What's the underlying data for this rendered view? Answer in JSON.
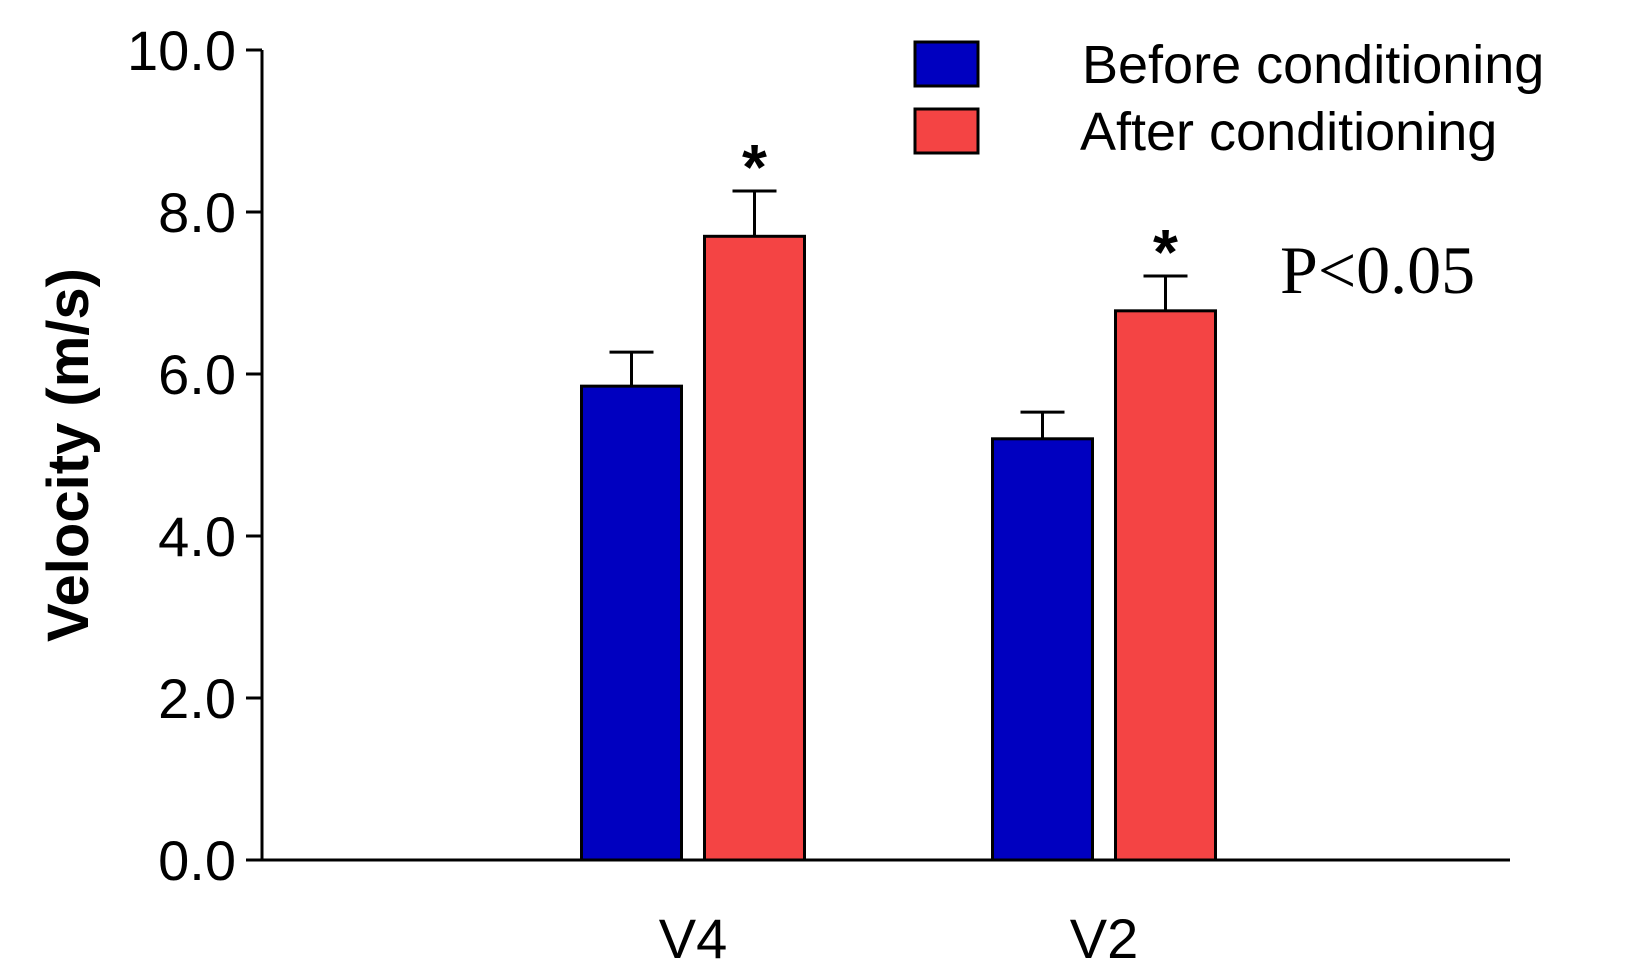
{
  "chart_data": {
    "type": "bar",
    "title": "",
    "xlabel": "",
    "ylabel": "Velocity (m/s)",
    "ylim": [
      0,
      10
    ],
    "yticks": [
      "0.0",
      "2.0",
      "4.0",
      "6.0",
      "8.0",
      "10.0"
    ],
    "categories": [
      "V4",
      "V2"
    ],
    "series": [
      {
        "name": "Before conditioning",
        "color": "#0000c0",
        "values": [
          5.85,
          5.2
        ],
        "errors": [
          0.42,
          0.33
        ],
        "significance": [
          "",
          ""
        ]
      },
      {
        "name": "After conditioning",
        "color": "#f44444",
        "values": [
          7.7,
          6.78
        ],
        "errors": [
          0.56,
          0.43
        ],
        "significance": [
          "*",
          "*"
        ]
      }
    ],
    "annotation": "P<0.05",
    "legend_position": "top-right",
    "grid": false
  }
}
